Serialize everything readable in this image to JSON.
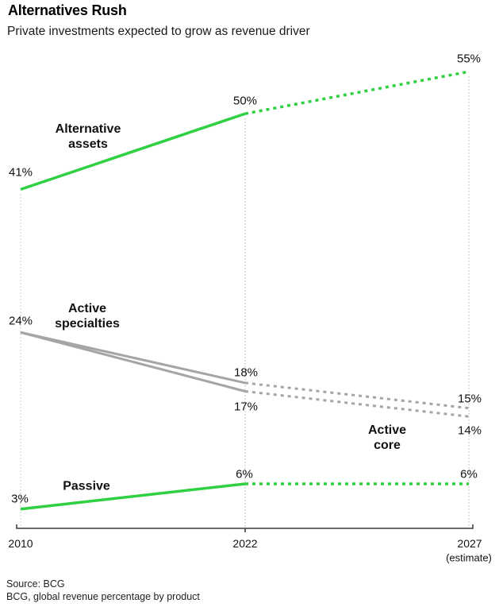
{
  "header": {
    "title": "Alternatives Rush",
    "subtitle": "Private investments expected to grow as revenue driver"
  },
  "chart_data": {
    "type": "line",
    "x_categories": [
      "2010",
      "2022",
      "2027"
    ],
    "unit": "%",
    "ylim": [
      0,
      60
    ],
    "grid": "vertical dotted gridlines at each x category",
    "legend_position": "labels placed directly on lines",
    "series": [
      {
        "name": "Alternative assets",
        "color": "green",
        "values": [
          41,
          50,
          55
        ],
        "solid_until": "2022",
        "dashed_after": "2022"
      },
      {
        "name": "Active specialties",
        "color": "gray",
        "values": [
          24,
          18,
          15
        ],
        "solid_until": "2022",
        "dashed_after": "2022"
      },
      {
        "name": "Active core",
        "color": "gray",
        "values": [
          24,
          17,
          14
        ],
        "solid_until": "2022",
        "dashed_after": "2022"
      },
      {
        "name": "Passive",
        "color": "green",
        "values": [
          3,
          6,
          6
        ],
        "solid_until": "2022",
        "dashed_after": "2022"
      }
    ],
    "value_labels": {
      "alternative_assets": [
        "41%",
        "50%",
        "55%"
      ],
      "active_specialties": [
        "24%",
        "18%",
        "15%"
      ],
      "active_core": [
        "17%",
        "14%"
      ],
      "passive": [
        "3%",
        "6%",
        "6%"
      ]
    }
  },
  "series_labels": {
    "alternative_assets_line1": "Alternative",
    "alternative_assets_line2": "assets",
    "active_specialties_line1": "Active",
    "active_specialties_line2": "specialties",
    "active_core_line1": "Active",
    "active_core_line2": "core",
    "passive": "Passive"
  },
  "axis": {
    "tick_2010": "2010",
    "tick_2022": "2022",
    "tick_2027": "2027",
    "estimate_note": "(estimate)"
  },
  "footer": {
    "source": "Source: BCG",
    "note": "BCG, global revenue percentage by product"
  },
  "colors": {
    "green": "#30d043",
    "gray": "#a5a5a5",
    "gridline": "#b5b5b5",
    "axis": "#3a3a3a",
    "text": "#000000"
  }
}
